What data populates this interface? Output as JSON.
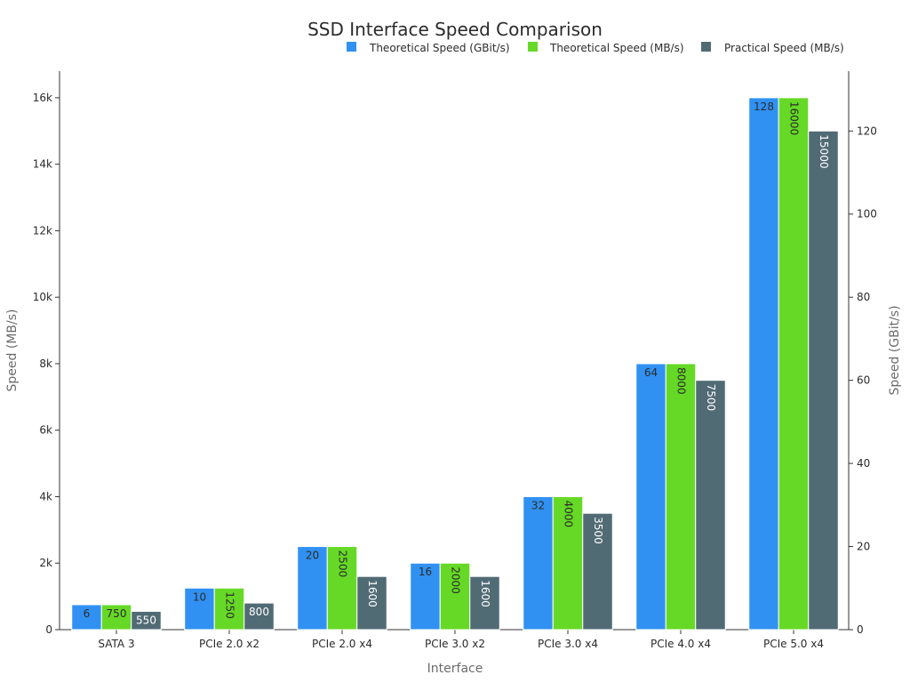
{
  "chart_data": {
    "type": "bar",
    "title": "SSD Interface Speed Comparison",
    "xlabel": "Interface",
    "ylabel": "Speed (MB/s)",
    "y2label": "Speed (GBit/s)",
    "categories": [
      "SATA 3",
      "PCIe 2.0 x2",
      "PCIe 2.0 x4",
      "PCIe 3.0 x2",
      "PCIe 3.0 x4",
      "PCIe 4.0 x4",
      "PCIe 5.0 x4"
    ],
    "ylim": [
      0,
      16800
    ],
    "y2lim": [
      0,
      134.4
    ],
    "yticks": [
      0,
      2000,
      4000,
      6000,
      8000,
      10000,
      12000,
      14000,
      16000
    ],
    "yticklabels": [
      "0",
      "2k",
      "4k",
      "6k",
      "8k",
      "10k",
      "12k",
      "14k",
      "16k"
    ],
    "y2ticks": [
      0,
      20,
      40,
      60,
      80,
      100,
      120
    ],
    "y2ticklabels": [
      "0",
      "20",
      "40",
      "60",
      "80",
      "100",
      "120"
    ],
    "legend_position": "top-right",
    "grid": false,
    "series": [
      {
        "name": "Theoretical Speed (GBit/s)",
        "axis": "right",
        "color": "#3091f2",
        "label_color": "#2b2b2b",
        "values": [
          6,
          10,
          20,
          16,
          32,
          64,
          128
        ]
      },
      {
        "name": "Theoretical Speed (MB/s)",
        "axis": "left",
        "color": "#66d926",
        "label_color": "#2b2b2b",
        "values": [
          750,
          1250,
          2500,
          2000,
          4000,
          8000,
          16000
        ]
      },
      {
        "name": "Practical Speed (MB/s)",
        "axis": "left",
        "color": "#516b75",
        "label_color": "#ffffff",
        "values": [
          550,
          800,
          1600,
          1600,
          3500,
          7500,
          15000
        ]
      }
    ]
  }
}
